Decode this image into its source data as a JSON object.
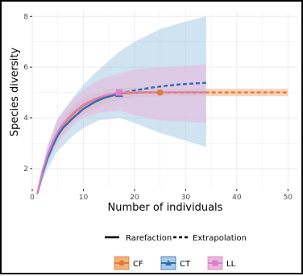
{
  "chart_data": {
    "type": "line",
    "xlabel": "Number of individuals",
    "ylabel": "Species diversity",
    "xlim": [
      0,
      52
    ],
    "ylim": [
      1.2,
      8.2
    ],
    "x_ticks": [
      0,
      10,
      20,
      30,
      40,
      50
    ],
    "y_ticks": [
      2,
      4,
      6,
      8
    ],
    "grid": true,
    "line_types": [
      {
        "label": "Rarefaction",
        "style": "solid"
      },
      {
        "label": "Extrapolation",
        "style": "dashed"
      }
    ],
    "series": [
      {
        "name": "CF",
        "color": "#E07B39",
        "band_color": "#F2B27E",
        "observed": {
          "x": 25,
          "y": 5.0
        },
        "rarefaction": [
          [
            1,
            1.0
          ],
          [
            2,
            1.85
          ],
          [
            3,
            2.5
          ],
          [
            4,
            3.0
          ],
          [
            5,
            3.4
          ],
          [
            6,
            3.7
          ],
          [
            8,
            4.15
          ],
          [
            10,
            4.48
          ],
          [
            12,
            4.7
          ],
          [
            14,
            4.84
          ],
          [
            16,
            4.93
          ],
          [
            18,
            4.97
          ],
          [
            20,
            4.99
          ],
          [
            22,
            5.0
          ],
          [
            25,
            5.0
          ]
        ],
        "extrapolation": [
          [
            25,
            5.0
          ],
          [
            30,
            5.0
          ],
          [
            35,
            5.0
          ],
          [
            40,
            5.0
          ],
          [
            45,
            5.0
          ],
          [
            50,
            5.0
          ]
        ],
        "ci": [
          [
            1,
            1.0,
            1.0
          ],
          [
            3,
            2.3,
            2.7
          ],
          [
            5,
            3.1,
            3.7
          ],
          [
            8,
            3.8,
            4.5
          ],
          [
            10,
            4.15,
            4.8
          ],
          [
            15,
            4.6,
            5.15
          ],
          [
            20,
            4.8,
            5.2
          ],
          [
            25,
            4.85,
            5.15
          ],
          [
            30,
            4.85,
            5.15
          ],
          [
            40,
            4.85,
            5.15
          ],
          [
            50,
            4.85,
            5.15
          ]
        ]
      },
      {
        "name": "CT",
        "color": "#2E6DB4",
        "band_color": "#A9CCE3",
        "observed": {
          "x": 17,
          "y": 4.95
        },
        "rarefaction": [
          [
            1,
            1.0
          ],
          [
            2,
            1.8
          ],
          [
            3,
            2.4
          ],
          [
            4,
            2.9
          ],
          [
            5,
            3.3
          ],
          [
            6,
            3.6
          ],
          [
            8,
            4.0
          ],
          [
            10,
            4.35
          ],
          [
            12,
            4.6
          ],
          [
            14,
            4.78
          ],
          [
            17,
            4.95
          ]
        ],
        "extrapolation": [
          [
            17,
            4.95
          ],
          [
            20,
            5.08
          ],
          [
            23,
            5.18
          ],
          [
            26,
            5.26
          ],
          [
            29,
            5.32
          ],
          [
            32,
            5.36
          ],
          [
            34,
            5.38
          ]
        ],
        "ci": [
          [
            1,
            1.0,
            1.0
          ],
          [
            3,
            2.0,
            2.9
          ],
          [
            5,
            2.7,
            4.0
          ],
          [
            8,
            3.3,
            4.8
          ],
          [
            10,
            3.6,
            5.3
          ],
          [
            13,
            3.9,
            5.9
          ],
          [
            17,
            4.0,
            6.6
          ],
          [
            20,
            3.8,
            7.0
          ],
          [
            25,
            3.4,
            7.5
          ],
          [
            30,
            3.1,
            7.8
          ],
          [
            34,
            2.85,
            8.0
          ]
        ]
      },
      {
        "name": "LL",
        "color": "#D980C6",
        "band_color": "#E8B8DC",
        "observed": {
          "x": 17,
          "y": 5.0
        },
        "rarefaction": [
          [
            1,
            1.0
          ],
          [
            2,
            1.9
          ],
          [
            3,
            2.55
          ],
          [
            4,
            3.05
          ],
          [
            5,
            3.45
          ],
          [
            6,
            3.75
          ],
          [
            8,
            4.2
          ],
          [
            10,
            4.52
          ],
          [
            12,
            4.73
          ],
          [
            14,
            4.87
          ],
          [
            17,
            5.0
          ]
        ],
        "extrapolation": [
          [
            17,
            5.0
          ],
          [
            20,
            5.01
          ],
          [
            25,
            5.01
          ],
          [
            30,
            5.01
          ],
          [
            34,
            5.01
          ]
        ],
        "ci": [
          [
            1,
            1.0,
            1.0
          ],
          [
            3,
            2.2,
            2.9
          ],
          [
            5,
            3.0,
            3.95
          ],
          [
            8,
            3.7,
            4.75
          ],
          [
            10,
            4.0,
            5.1
          ],
          [
            13,
            4.2,
            5.5
          ],
          [
            17,
            4.3,
            5.75
          ],
          [
            20,
            4.1,
            5.9
          ],
          [
            25,
            3.9,
            6.0
          ],
          [
            30,
            3.85,
            6.05
          ],
          [
            34,
            3.8,
            6.1
          ]
        ]
      }
    ]
  }
}
